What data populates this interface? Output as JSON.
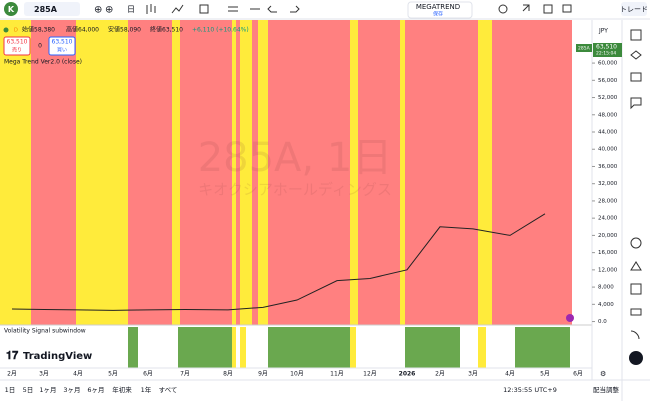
{
  "toolbar": {
    "logo": "K",
    "symbol": "285A",
    "interval": "日",
    "layout_name": "MEGATREND",
    "layout_status": "保存",
    "trade": "トレード"
  },
  "legend": {
    "marker": "D",
    "open": "始値58,380",
    "high": "高値64,000",
    "low": "安値58,090",
    "close": "終値63,510",
    "change": "+6,110 (+10.64%)",
    "sell_price": "63,510",
    "sell_label": "売り",
    "spread": "0",
    "buy_price": "63,510",
    "buy_label": "買い",
    "indicator": "Mega Trend Ver2.0 (close)"
  },
  "watermark": {
    "title": "285A, 1日",
    "name": "キオクシアホールディングス"
  },
  "currency": "JPY",
  "price_tag": {
    "symbol": "285A",
    "price": "63,510",
    "countdown": "22:15:04"
  },
  "subwindow": "Volatility Signal subwindow",
  "brand": "TradingView",
  "chart_data": {
    "type": "line",
    "color": "#222222",
    "categories": [
      "2月",
      "3月",
      "4月",
      "5月",
      "6月",
      "7月",
      "8月",
      "9月",
      "10月",
      "11月",
      "12月",
      "2026",
      "2月",
      "3月",
      "4月",
      "5月",
      "6月"
    ],
    "values": [
      2900,
      2800,
      2700,
      2600,
      2700,
      2800,
      2700,
      3300,
      5000,
      9500,
      10000,
      12000,
      22000,
      21500,
      20000,
      25000,
      null
    ],
    "ylim": [
      -800,
      70000
    ],
    "yticks": [
      {
        "value": 0,
        "label": "0.0"
      },
      {
        "value": 4000,
        "label": "4,000"
      },
      {
        "value": 8000,
        "label": "8,000"
      },
      {
        "value": 12000,
        "label": "12,000"
      },
      {
        "value": 16000,
        "label": "16,000"
      },
      {
        "value": 20000,
        "label": "20,000"
      },
      {
        "value": 24000,
        "label": "24,000"
      },
      {
        "value": 28000,
        "label": "28,000"
      },
      {
        "value": 32000,
        "label": "32,000"
      },
      {
        "value": 36000,
        "label": "36,000"
      },
      {
        "value": 40000,
        "label": "40,000"
      },
      {
        "value": 44000,
        "label": "44,000"
      },
      {
        "value": 48000,
        "label": "48,000"
      },
      {
        "value": 52000,
        "label": "52,000"
      },
      {
        "value": 56000,
        "label": "56,000"
      },
      {
        "value": 60000,
        "label": "60,000"
      }
    ]
  },
  "ranges": [
    "1日",
    "5日",
    "1ヶ月",
    "3ヶ月",
    "6ヶ月",
    "年初来",
    "1年",
    "すべて"
  ],
  "clock": "12:35:55 UTC+9",
  "adjust": "配当調整"
}
